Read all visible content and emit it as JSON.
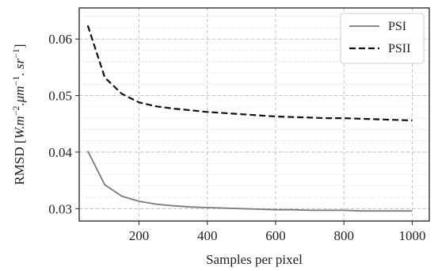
{
  "chart_data": {
    "type": "line",
    "xlabel": "Samples per pixel",
    "ylabel_parts": [
      "RMSD [",
      "W.m",
      "−2",
      ".μm",
      "−1",
      ". sr",
      "−1",
      "]"
    ],
    "xlim": [
      25,
      1050
    ],
    "ylim": [
      0.0278,
      0.0655
    ],
    "x_ticks": [
      200,
      400,
      600,
      800,
      1000
    ],
    "y_ticks": [
      0.03,
      0.04,
      0.05,
      0.06
    ],
    "y_tick_labels": [
      "0.03",
      "0.04",
      "0.05",
      "0.06"
    ],
    "grid": true,
    "legend_position": "top-right",
    "x": [
      50,
      100,
      150,
      200,
      250,
      300,
      350,
      400,
      450,
      500,
      550,
      600,
      650,
      700,
      750,
      800,
      850,
      900,
      950,
      1000
    ],
    "series": [
      {
        "name": "PSI",
        "style": "solid",
        "color": "#7a7a7a",
        "values": [
          0.0402,
          0.0342,
          0.0322,
          0.0313,
          0.0308,
          0.0305,
          0.0303,
          0.0302,
          0.0301,
          0.03,
          0.0299,
          0.0298,
          0.0298,
          0.0297,
          0.0297,
          0.0297,
          0.0296,
          0.0296,
          0.0296,
          0.0296
        ]
      },
      {
        "name": "PSII",
        "style": "dashed",
        "color": "#111111",
        "values": [
          0.0624,
          0.0532,
          0.0503,
          0.0488,
          0.0481,
          0.0477,
          0.0474,
          0.0471,
          0.0469,
          0.0467,
          0.0465,
          0.0463,
          0.0462,
          0.0461,
          0.046,
          0.046,
          0.0459,
          0.0458,
          0.0457,
          0.0456
        ]
      }
    ]
  }
}
